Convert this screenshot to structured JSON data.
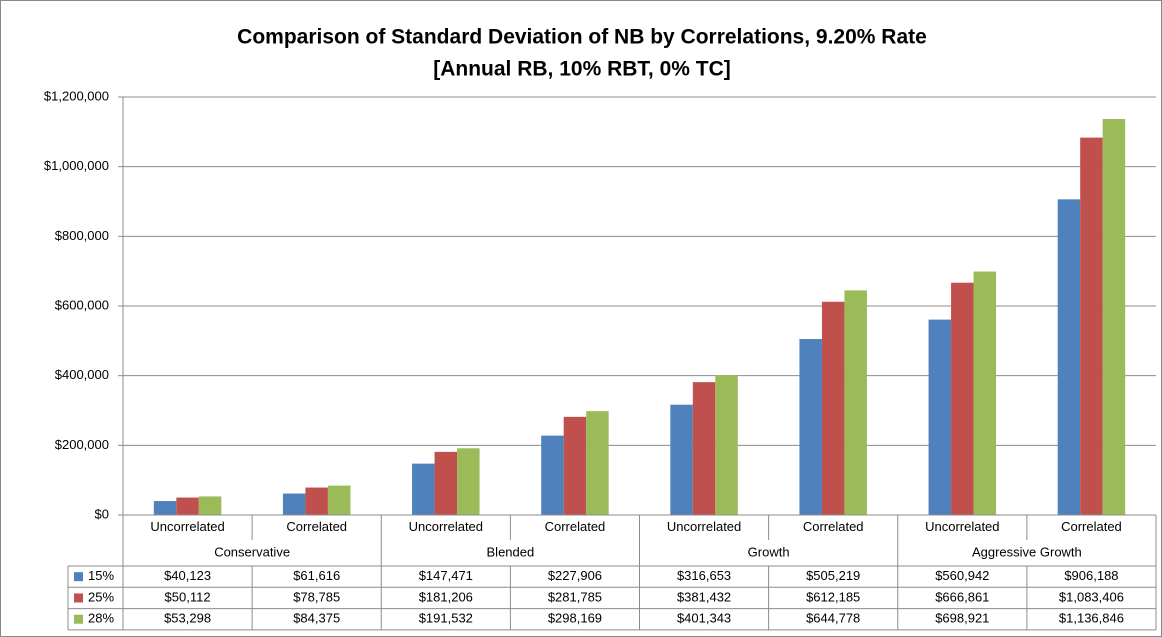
{
  "chart_data": {
    "type": "bar",
    "title": "Comparison of Standard Deviation of NB by Correlations, 9.20% Rate",
    "subtitle": "[Annual RB, 10% RBT, 0% TC]",
    "categories": [
      "Uncorrelated",
      "Correlated",
      "Uncorrelated",
      "Correlated",
      "Uncorrelated",
      "Correlated",
      "Uncorrelated",
      "Correlated"
    ],
    "groups": [
      "Conservative",
      "Blended",
      "Growth",
      "Aggressive Growth"
    ],
    "series": [
      {
        "name": "15%",
        "color": "#4f81bd",
        "values": [
          40123,
          61616,
          147471,
          227906,
          316653,
          505219,
          560942,
          906188
        ],
        "value_labels": [
          "$40,123",
          "$61,616",
          "$147,471",
          "$227,906",
          "$316,653",
          "$505,219",
          "$560,942",
          "$906,188"
        ]
      },
      {
        "name": "25%",
        "color": "#c0504d",
        "values": [
          50112,
          78785,
          181206,
          281785,
          381432,
          612185,
          666861,
          1083406
        ],
        "value_labels": [
          "$50,112",
          "$78,785",
          "$181,206",
          "$281,785",
          "$381,432",
          "$612,185",
          "$666,861",
          "$1,083,406"
        ]
      },
      {
        "name": "28%",
        "color": "#9bbb59",
        "values": [
          53298,
          84375,
          191532,
          298169,
          401343,
          644778,
          698921,
          1136846
        ],
        "value_labels": [
          "$53,298",
          "$84,375",
          "$191,532",
          "$298,169",
          "$401,343",
          "$644,778",
          "$698,921",
          "$1,136,846"
        ]
      }
    ],
    "ylim": [
      0,
      1200000
    ],
    "yticks": [
      {
        "value": 0,
        "label": "$0"
      },
      {
        "value": 200000,
        "label": "$200,000"
      },
      {
        "value": 400000,
        "label": "$400,000"
      },
      {
        "value": 600000,
        "label": "$600,000"
      },
      {
        "value": 800000,
        "label": "$800,000"
      },
      {
        "value": 1000000,
        "label": "$1,000,000"
      },
      {
        "value": 1200000,
        "label": "$1,200,000"
      }
    ],
    "grid": true
  }
}
